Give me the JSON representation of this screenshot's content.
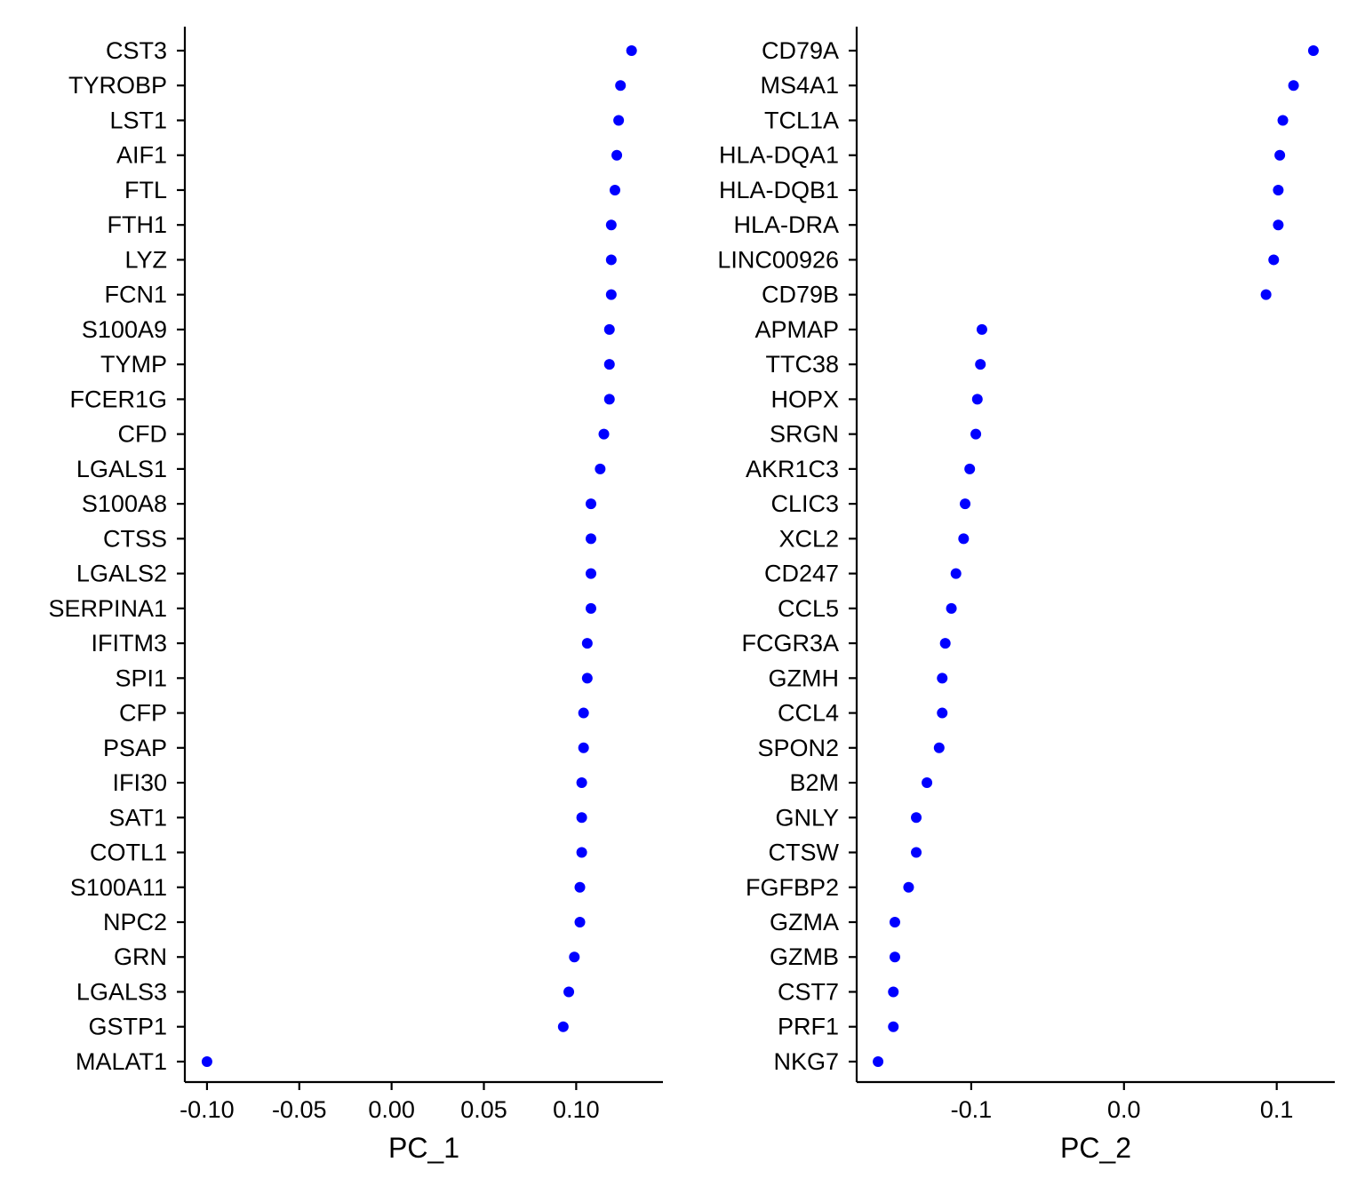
{
  "chart_data": [
    {
      "type": "scatter",
      "xlabel": "PC_1",
      "xlim": [
        -0.112,
        0.147
      ],
      "xticks": [
        -0.1,
        -0.05,
        0.0,
        0.05,
        0.1
      ],
      "xtick_labels": [
        "-0.10",
        "-0.05",
        "0.00",
        "0.05",
        "0.10"
      ],
      "point_color": "#0000FF",
      "categories": [
        "CST3",
        "TYROBP",
        "LST1",
        "AIF1",
        "FTL",
        "FTH1",
        "LYZ",
        "FCN1",
        "S100A9",
        "TYMP",
        "FCER1G",
        "CFD",
        "LGALS1",
        "S100A8",
        "CTSS",
        "LGALS2",
        "SERPINA1",
        "IFITM3",
        "SPI1",
        "CFP",
        "PSAP",
        "IFI30",
        "SAT1",
        "COTL1",
        "S100A11",
        "NPC2",
        "GRN",
        "LGALS3",
        "GSTP1",
        "MALAT1"
      ],
      "values": [
        0.13,
        0.124,
        0.123,
        0.122,
        0.121,
        0.119,
        0.119,
        0.119,
        0.118,
        0.118,
        0.118,
        0.115,
        0.113,
        0.108,
        0.108,
        0.108,
        0.108,
        0.106,
        0.106,
        0.104,
        0.104,
        0.103,
        0.103,
        0.103,
        0.102,
        0.102,
        0.099,
        0.096,
        0.093,
        -0.1
      ]
    },
    {
      "type": "scatter",
      "xlabel": "PC_2",
      "xlim": [
        -0.175,
        0.138
      ],
      "xticks": [
        -0.1,
        0.0,
        0.1
      ],
      "xtick_labels": [
        "-0.1",
        "0.0",
        "0.1"
      ],
      "point_color": "#0000FF",
      "categories": [
        "CD79A",
        "MS4A1",
        "TCL1A",
        "HLA-DQA1",
        "HLA-DQB1",
        "HLA-DRA",
        "LINC00926",
        "CD79B",
        "APMAP",
        "TTC38",
        "HOPX",
        "SRGN",
        "AKR1C3",
        "CLIC3",
        "XCL2",
        "CD247",
        "CCL5",
        "FCGR3A",
        "GZMH",
        "CCL4",
        "SPON2",
        "B2M",
        "GNLY",
        "CTSW",
        "FGFBP2",
        "GZMA",
        "GZMB",
        "CST7",
        "PRF1",
        "NKG7"
      ],
      "values": [
        0.124,
        0.111,
        0.104,
        0.102,
        0.101,
        0.101,
        0.098,
        0.093,
        -0.093,
        -0.094,
        -0.096,
        -0.097,
        -0.101,
        -0.104,
        -0.105,
        -0.11,
        -0.113,
        -0.117,
        -0.119,
        -0.119,
        -0.121,
        -0.129,
        -0.136,
        -0.136,
        -0.141,
        -0.15,
        -0.15,
        -0.151,
        -0.151,
        -0.161
      ]
    }
  ]
}
